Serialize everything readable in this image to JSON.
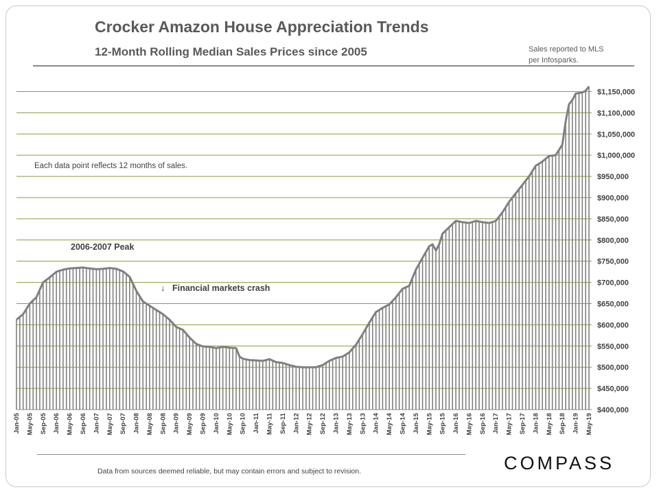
{
  "header": {
    "title": "Crocker Amazon House Appreciation Trends",
    "subtitle": "12-Month Rolling Median Sales Prices since 2005",
    "source_line1": "Sales reported to MLS",
    "source_line2": "per Infosparks."
  },
  "footer": {
    "disclaimer": "Data from sources deemed reliable, but may contain errors and subject to revision.",
    "logo": "COMPASS"
  },
  "colors": {
    "gridline": "#8a9a3c",
    "bar": "#7f7f7f",
    "line": "#7f7f7f",
    "text": "#404040"
  },
  "chart_data": {
    "type": "line",
    "title": "Crocker Amazon House Appreciation Trends",
    "subtitle": "12-Month Rolling Median Sales Prices since 2005",
    "x_start": "Jan-05",
    "x_end": "May-19",
    "x_tick_labels": [
      "Jan-05",
      "May-05",
      "Sep-05",
      "Jan-06",
      "May-06",
      "Sep-06",
      "Jan-07",
      "May-07",
      "Sep-07",
      "Jan-08",
      "May-08",
      "Sep-08",
      "Jan-09",
      "May-09",
      "Sep-09",
      "Jan-10",
      "May-10",
      "Sep-10",
      "Jan-11",
      "May-11",
      "Sep-11",
      "Jan-12",
      "May-12",
      "Sep-12",
      "Jan-13",
      "May-13",
      "Sep-13",
      "Jan-14",
      "May-14",
      "Sep-14",
      "Jan-15",
      "May-15",
      "Sep-15",
      "Jan-16",
      "May-16",
      "Sep-16",
      "Jan-17",
      "May-17",
      "Sep-17",
      "Jan-18",
      "May-18",
      "Sep-18",
      "Jan-19",
      "May-19"
    ],
    "y_tick_labels": [
      "$400,000",
      "$450,000",
      "$500,000",
      "$550,000",
      "$600,000",
      "$650,000",
      "$700,000",
      "$750,000",
      "$800,000",
      "$850,000",
      "$900,000",
      "$950,000",
      "$1,000,000",
      "$1,050,000",
      "$1,100,000",
      "$1,150,000"
    ],
    "ylim": [
      400000,
      1175000
    ],
    "grid": true,
    "y_axis_side": "right",
    "anchor_points": [
      [
        "Jan-05",
        612000
      ],
      [
        "Mar-05",
        625000
      ],
      [
        "May-05",
        650000
      ],
      [
        "Jul-05",
        665000
      ],
      [
        "Sep-05",
        700000
      ],
      [
        "Nov-05",
        712000
      ],
      [
        "Jan-06",
        725000
      ],
      [
        "Mar-06",
        730000
      ],
      [
        "May-06",
        733000
      ],
      [
        "Sep-06",
        735000
      ],
      [
        "Jan-07",
        731000
      ],
      [
        "Mar-07",
        732000
      ],
      [
        "May-07",
        734000
      ],
      [
        "Jul-07",
        732000
      ],
      [
        "Sep-07",
        726000
      ],
      [
        "Nov-07",
        713000
      ],
      [
        "Jan-08",
        680000
      ],
      [
        "Mar-08",
        655000
      ],
      [
        "May-08",
        645000
      ],
      [
        "Jul-08",
        635000
      ],
      [
        "Sep-08",
        625000
      ],
      [
        "Nov-08",
        612000
      ],
      [
        "Jan-09",
        595000
      ],
      [
        "Mar-09",
        588000
      ],
      [
        "May-09",
        570000
      ],
      [
        "Jul-09",
        555000
      ],
      [
        "Sep-09",
        549000
      ],
      [
        "Nov-09",
        548000
      ],
      [
        "Jan-10",
        545000
      ],
      [
        "Mar-10",
        548000
      ],
      [
        "May-10",
        546000
      ],
      [
        "Jul-10",
        545000
      ],
      [
        "Aug-10",
        525000
      ],
      [
        "Sep-10",
        520000
      ],
      [
        "Nov-10",
        517000
      ],
      [
        "Jan-11",
        516000
      ],
      [
        "Mar-11",
        515000
      ],
      [
        "May-11",
        519000
      ],
      [
        "Jul-11",
        512000
      ],
      [
        "Sep-11",
        510000
      ],
      [
        "Nov-11",
        505000
      ],
      [
        "Jan-12",
        501000
      ],
      [
        "Mar-12",
        500000
      ],
      [
        "May-12",
        500000
      ],
      [
        "Jul-12",
        500000
      ],
      [
        "Sep-12",
        505000
      ],
      [
        "Nov-12",
        515000
      ],
      [
        "Jan-13",
        522000
      ],
      [
        "Mar-13",
        525000
      ],
      [
        "May-13",
        535000
      ],
      [
        "Jul-13",
        553000
      ],
      [
        "Sep-13",
        578000
      ],
      [
        "Nov-13",
        605000
      ],
      [
        "Jan-14",
        630000
      ],
      [
        "Mar-14",
        640000
      ],
      [
        "May-14",
        648000
      ],
      [
        "Jul-14",
        665000
      ],
      [
        "Sep-14",
        685000
      ],
      [
        "Nov-14",
        692000
      ],
      [
        "Jan-15",
        730000
      ],
      [
        "Mar-15",
        758000
      ],
      [
        "May-15",
        785000
      ],
      [
        "Jun-15",
        790000
      ],
      [
        "Jul-15",
        775000
      ],
      [
        "Aug-15",
        790000
      ],
      [
        "Sep-15",
        815000
      ],
      [
        "Nov-15",
        830000
      ],
      [
        "Jan-16",
        845000
      ],
      [
        "Mar-16",
        842000
      ],
      [
        "May-16",
        840000
      ],
      [
        "Jul-16",
        845000
      ],
      [
        "Sep-16",
        842000
      ],
      [
        "Nov-16",
        840000
      ],
      [
        "Jan-17",
        845000
      ],
      [
        "Mar-17",
        865000
      ],
      [
        "May-17",
        890000
      ],
      [
        "Jul-17",
        910000
      ],
      [
        "Sep-17",
        930000
      ],
      [
        "Nov-17",
        950000
      ],
      [
        "Jan-18",
        975000
      ],
      [
        "Mar-18",
        985000
      ],
      [
        "May-18",
        998000
      ],
      [
        "Jul-18",
        1000000
      ],
      [
        "Sep-18",
        1025000
      ],
      [
        "Oct-18",
        1080000
      ],
      [
        "Nov-18",
        1120000
      ],
      [
        "Dec-18",
        1130000
      ],
      [
        "Jan-19",
        1145000
      ],
      [
        "Mar-19",
        1148000
      ],
      [
        "Apr-19",
        1152000
      ],
      [
        "May-19",
        1162000
      ]
    ]
  },
  "annotations": {
    "note": "Each data point reflects 12 months of sales.",
    "peak": "2006-2007  Peak",
    "crash": "Financial markets crash",
    "crash_arrow": "↓"
  }
}
